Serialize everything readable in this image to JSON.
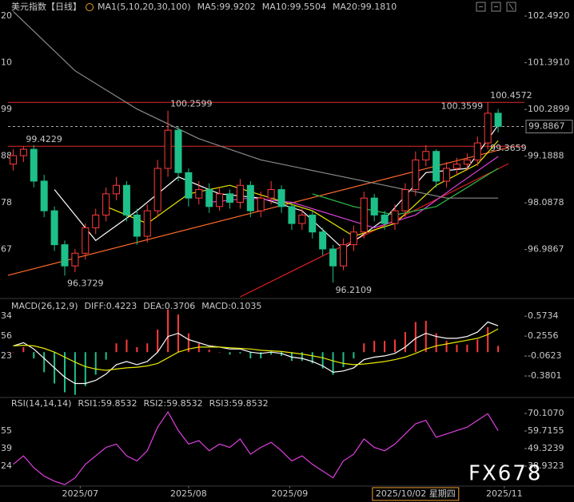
{
  "watermark": "FX678",
  "chart_data": [
    {
      "type": "candlestick",
      "title": "美元指数【日线】",
      "subtitle": "MA1(5,10,20,30,100)",
      "open": [
        99.0,
        99.2,
        99.35,
        98.6,
        97.9,
        97.1,
        96.6,
        96.9,
        97.5,
        97.8,
        98.3,
        98.5,
        97.8,
        97.3,
        97.9,
        98.9,
        99.8,
        98.8,
        98.2,
        98.4,
        98.0,
        98.3,
        98.1,
        98.5,
        97.9,
        98.2,
        98.4,
        98.0,
        97.6,
        97.8,
        97.4,
        97.0,
        96.6,
        97.1,
        97.4,
        98.2,
        97.8,
        97.6,
        97.9,
        98.4,
        99.1,
        99.3,
        98.6,
        98.9,
        99.0,
        99.1,
        99.5,
        100.2
      ],
      "high": [
        99.35,
        99.42,
        99.45,
        98.75,
        98.0,
        97.2,
        97.0,
        97.6,
        97.95,
        98.45,
        98.7,
        98.6,
        97.95,
        98.05,
        99.1,
        100.26,
        99.9,
        98.9,
        98.6,
        98.55,
        98.45,
        98.4,
        98.65,
        98.6,
        98.35,
        98.6,
        98.5,
        98.1,
        97.95,
        97.9,
        97.5,
        97.1,
        97.25,
        97.55,
        98.35,
        98.3,
        97.9,
        98.05,
        98.55,
        99.3,
        99.45,
        99.35,
        99.05,
        99.15,
        99.25,
        99.65,
        100.46,
        100.3
      ],
      "low": [
        98.85,
        99.05,
        98.45,
        97.75,
        96.95,
        96.37,
        96.45,
        96.75,
        97.35,
        97.65,
        98.15,
        97.65,
        97.1,
        97.15,
        97.75,
        98.7,
        98.6,
        98.0,
        98.05,
        97.85,
        97.9,
        97.95,
        97.95,
        97.75,
        97.75,
        98.05,
        97.85,
        97.45,
        97.45,
        97.25,
        96.85,
        96.21,
        96.5,
        96.95,
        97.25,
        97.65,
        97.45,
        97.45,
        97.75,
        98.25,
        98.95,
        98.45,
        98.45,
        98.75,
        98.85,
        98.95,
        99.35,
        99.75
      ],
      "close": [
        99.2,
        99.35,
        98.6,
        97.9,
        97.1,
        96.6,
        96.9,
        97.5,
        97.8,
        98.3,
        98.5,
        97.8,
        97.3,
        97.9,
        98.9,
        99.8,
        98.8,
        98.2,
        98.4,
        98.0,
        98.3,
        98.1,
        98.5,
        97.9,
        98.2,
        98.4,
        98.0,
        97.6,
        97.8,
        97.4,
        97.0,
        96.6,
        97.1,
        97.4,
        98.2,
        97.8,
        97.6,
        97.9,
        98.4,
        99.1,
        99.3,
        98.6,
        98.9,
        99.0,
        99.1,
        99.5,
        100.2,
        99.89
      ],
      "up_color": "#ff3b3b",
      "down_color": "#1ec08a",
      "xlim": [
        -0.5,
        48
      ],
      "ylim": [
        95.87,
        102.87
      ],
      "yticks": [
        {
          "value": 102.492,
          "label": "102.4920",
          "left_label": "20"
        },
        {
          "value": 101.391,
          "label": "101.3910",
          "left_label": "10"
        },
        {
          "value": 100.2899,
          "label": "100.2899",
          "left_label": "99"
        },
        {
          "value": 99.1888,
          "label": "99.1888",
          "left_label": "88"
        },
        {
          "value": 98.0878,
          "label": "98.0878",
          "left_label": "78"
        },
        {
          "value": 96.9867,
          "label": "96.9867",
          "left_label": "67"
        }
      ],
      "series": [
        {
          "label": "MA5:99.9202",
          "color": "#ffffff",
          "x": [
            4,
            8,
            12,
            16,
            20,
            24,
            28,
            32,
            36,
            40,
            44,
            47
          ],
          "values": [
            98.4,
            97.2,
            97.9,
            98.7,
            98.3,
            98.2,
            97.9,
            97.0,
            97.7,
            98.8,
            98.9,
            99.92
          ]
        },
        {
          "label": "MA10:99.5504",
          "color": "#e8e800",
          "x": [
            9,
            13,
            17,
            21,
            25,
            29,
            33,
            37,
            41,
            45,
            47
          ],
          "values": [
            98.0,
            97.6,
            98.3,
            98.5,
            98.2,
            97.9,
            97.3,
            97.6,
            98.5,
            99.0,
            99.55
          ]
        },
        {
          "label": "MA20:99.1810",
          "color": "#e040e0",
          "x": [
            19,
            23,
            27,
            31,
            35,
            39,
            43,
            47
          ],
          "values": [
            98.1,
            98.2,
            98.1,
            97.8,
            97.5,
            97.8,
            98.5,
            99.18
          ]
        },
        {
          "color": "#2fbf4a",
          "x": [
            29,
            33,
            37,
            41,
            45,
            47
          ],
          "values": [
            98.3,
            98.0,
            97.8,
            98.0,
            98.6,
            98.9
          ]
        },
        {
          "color": "#8a8a8a",
          "x": [
            0,
            6,
            12,
            18,
            24,
            30,
            36,
            42,
            47
          ],
          "values": [
            102.6,
            101.2,
            100.3,
            99.6,
            99.1,
            98.8,
            98.5,
            98.2,
            98.2
          ]
        }
      ],
      "hlines": [
        {
          "value": 100.4572,
          "color": "#e02828"
        },
        {
          "value": 99.4229,
          "color": "#e02828"
        }
      ],
      "current": {
        "value": 99.8867
      },
      "trendlines": [
        {
          "x": [
            -0.5,
            48
          ],
          "values": [
            96.38,
            99.39
          ],
          "color": "#ff6a2a"
        },
        {
          "x": [
            22,
            48
          ],
          "values": [
            95.87,
            99.01
          ],
          "color": "#e02020"
        }
      ],
      "annotations": [
        {
          "x": 15,
          "value": 100.2599,
          "color": "#ff3b3b",
          "anchor": "start",
          "side": "above"
        },
        {
          "x": 1,
          "value": 99.4229,
          "color": "#ff3b3b",
          "anchor": "start",
          "side": "above"
        },
        {
          "x": 5,
          "value": 96.3729,
          "color": "#3fd39a",
          "anchor": "start",
          "side": "below"
        },
        {
          "x": 31,
          "value": 96.2109,
          "color": "#3fd39a",
          "anchor": "start",
          "side": "below"
        },
        {
          "x": 46,
          "value": 100.3599,
          "color": "#ff3b3b",
          "anchor": "end",
          "side": "on"
        },
        {
          "x": 46,
          "value": 100.4572,
          "color": "#ff3b3b",
          "anchor": "start",
          "side": "above"
        },
        {
          "x": 46,
          "value": 99.3659,
          "color": "#ff3b3b",
          "anchor": "start",
          "side": "on"
        }
      ]
    },
    {
      "type": "macd",
      "title": "MACD(26,12,9)",
      "xlim": [
        -0.5,
        48
      ],
      "ylim": [
        -0.71,
        0.83
      ],
      "yticks": [
        {
          "value": 0.5734,
          "left_label": "34"
        },
        {
          "value": 0.2556,
          "left_label": "56"
        },
        {
          "value": -0.0623,
          "left_label": "23"
        },
        {
          "value": -0.3801
        }
      ],
      "series": [
        {
          "label": "DIFF:0.4223",
          "color": "#ffffff",
          "values": [
            0.1,
            0.15,
            0.05,
            -0.1,
            -0.25,
            -0.4,
            -0.5,
            -0.5,
            -0.45,
            -0.35,
            -0.2,
            -0.15,
            -0.2,
            -0.15,
            0.0,
            0.25,
            0.3,
            0.2,
            0.15,
            0.1,
            0.08,
            0.05,
            0.05,
            0.0,
            -0.02,
            0.0,
            -0.02,
            -0.08,
            -0.1,
            -0.15,
            -0.22,
            -0.32,
            -0.3,
            -0.25,
            -0.12,
            -0.08,
            -0.06,
            -0.02,
            0.08,
            0.22,
            0.3,
            0.25,
            0.22,
            0.22,
            0.25,
            0.32,
            0.48,
            0.42
          ]
        },
        {
          "label": "DEA:0.3706",
          "color": "#e8e800",
          "values": [
            0.1,
            0.11,
            0.1,
            0.06,
            0.0,
            -0.08,
            -0.16,
            -0.23,
            -0.27,
            -0.29,
            -0.27,
            -0.25,
            -0.24,
            -0.22,
            -0.18,
            -0.09,
            0.0,
            0.05,
            0.08,
            0.08,
            0.08,
            0.07,
            0.06,
            0.05,
            0.03,
            0.02,
            0.01,
            -0.01,
            -0.03,
            -0.06,
            -0.09,
            -0.14,
            -0.18,
            -0.2,
            -0.19,
            -0.17,
            -0.15,
            -0.12,
            -0.08,
            -0.02,
            0.05,
            0.1,
            0.13,
            0.16,
            0.19,
            0.22,
            0.28,
            0.37
          ]
        }
      ],
      "histogram": {
        "label": "MACD:0.1035",
        "color": "#e040e0",
        "up_color": "#ff3b3b",
        "down_color": "#1ec08a",
        "values": [
          0,
          0.08,
          -0.1,
          -0.32,
          -0.5,
          -0.64,
          -0.68,
          -0.54,
          -0.36,
          -0.12,
          0.14,
          0.2,
          0.08,
          0.14,
          0.36,
          0.68,
          0.6,
          0.3,
          0.14,
          0.04,
          0,
          -0.04,
          -0.02,
          -0.1,
          -0.1,
          -0.04,
          -0.06,
          -0.14,
          -0.14,
          -0.18,
          -0.26,
          -0.36,
          -0.24,
          -0.1,
          0.14,
          0.18,
          0.18,
          0.2,
          0.32,
          0.48,
          0.5,
          0.3,
          0.18,
          0.12,
          0.12,
          0.2,
          0.4,
          0.1
        ]
      }
    },
    {
      "type": "line",
      "title": "RSI(14,14,14)",
      "xlim": [
        -0.5,
        48
      ],
      "ylim": [
        27.6,
        79.1
      ],
      "yticks": [
        {
          "value": 70.107,
          "label": "70.1070"
        },
        {
          "value": 59.7155,
          "left_label": "55"
        },
        {
          "value": 49.3239,
          "left_label": "39"
        },
        {
          "value": 38.9323,
          "left_label": "24"
        }
      ],
      "series": [
        {
          "label": "RSI1:59.8532",
          "color": "#e040e0",
          "values": [
            40,
            45,
            38,
            33,
            30,
            28,
            32,
            40,
            45,
            50,
            52,
            45,
            42,
            48,
            62,
            71,
            60,
            52,
            54,
            48,
            52,
            50,
            55,
            46,
            50,
            53,
            48,
            42,
            45,
            40,
            36,
            32,
            42,
            46,
            55,
            50,
            48,
            52,
            58,
            64,
            66,
            56,
            58,
            60,
            62,
            66,
            70,
            59.85
          ]
        },
        {
          "label": "RSI2:59.8532",
          "color": "#e8e800"
        },
        {
          "label": "RSI3:59.8532",
          "color": "#e040e0"
        }
      ],
      "xticks": [
        {
          "value": 6.5,
          "label": "2025/07"
        },
        {
          "value": 17,
          "label": "2025/08"
        },
        {
          "value": 26.8,
          "label": "2025/09"
        },
        {
          "value": 47.6,
          "label": "2025/11"
        }
      ],
      "cursor": {
        "value": 39,
        "label": "2025/10/02 星期四"
      }
    }
  ]
}
